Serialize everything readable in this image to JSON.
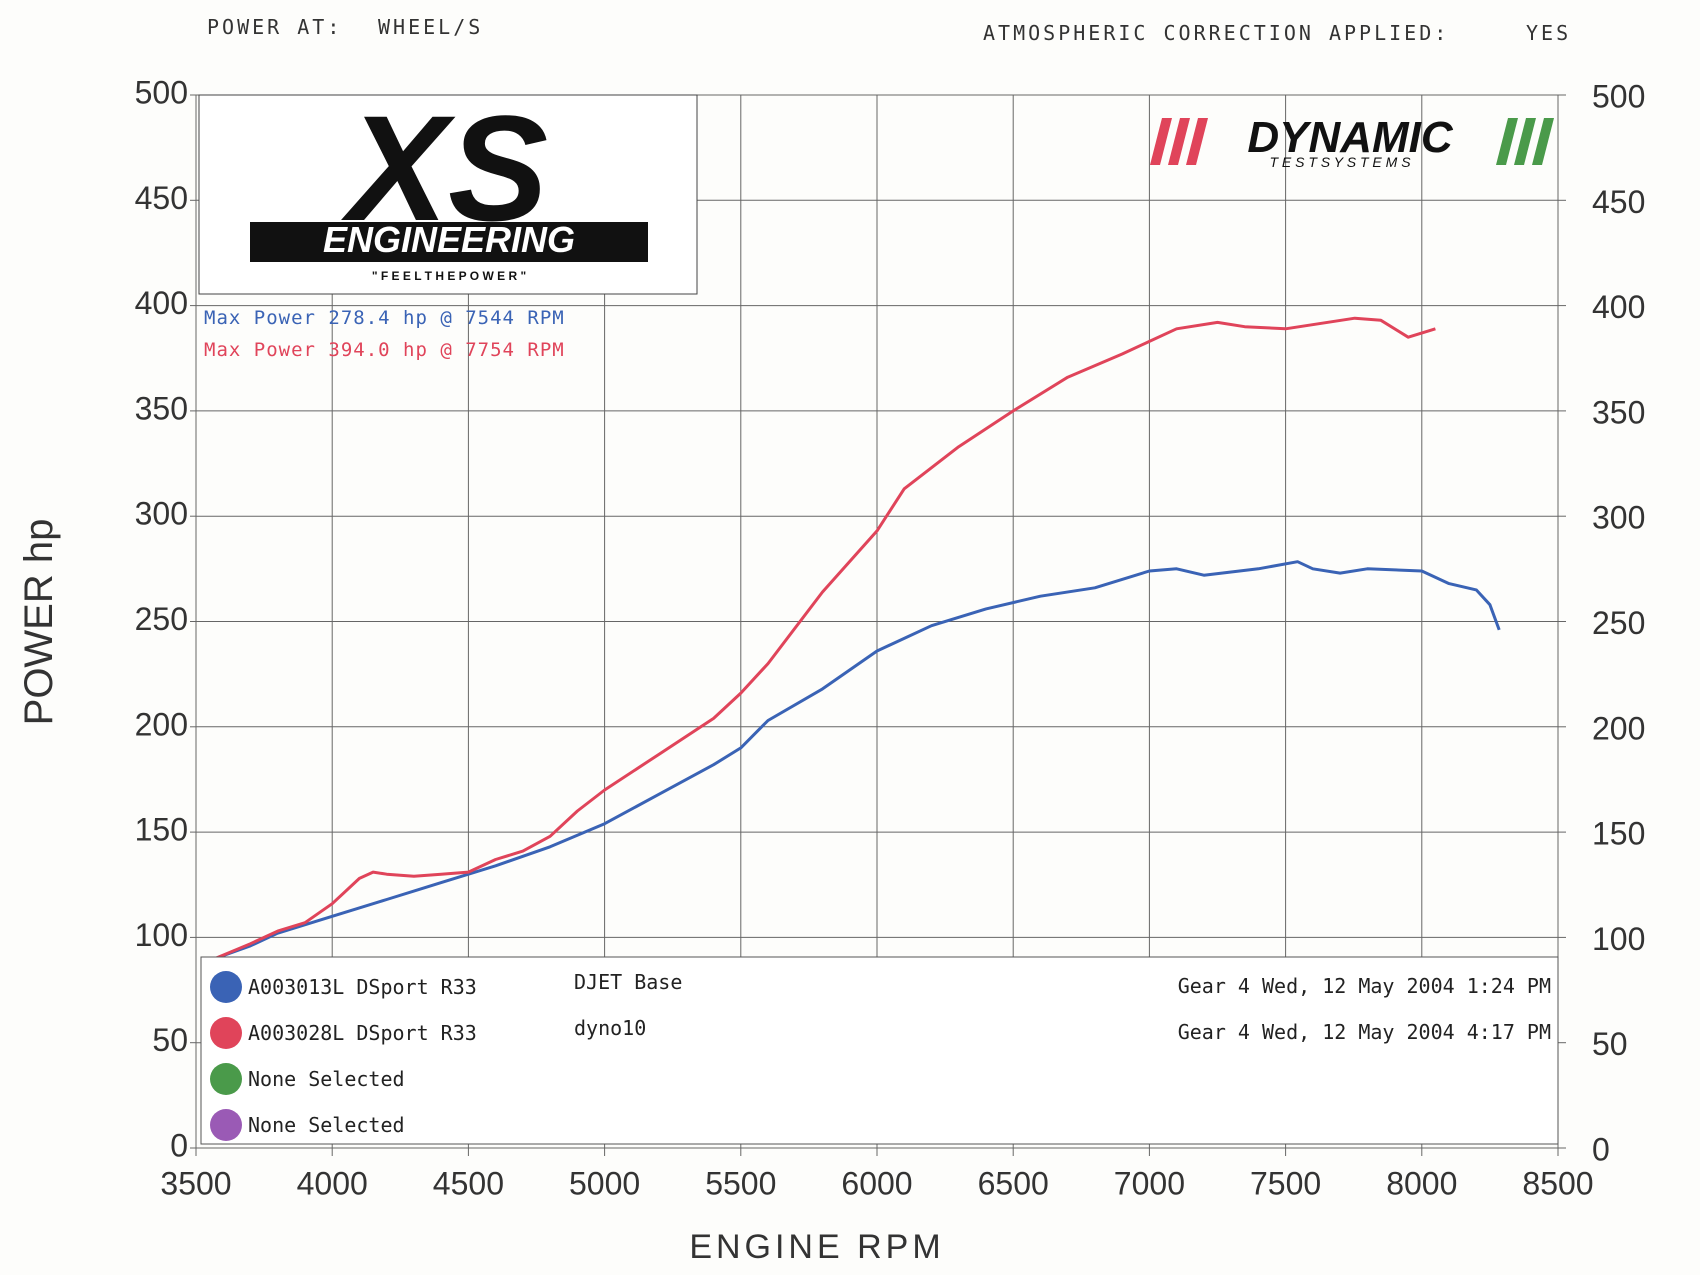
{
  "chart_data": {
    "type": "line",
    "header_left_label": "POWER AT:",
    "header_left_value": "WHEEL/S",
    "header_right_label": "ATMOSPHERIC CORRECTION APPLIED:",
    "header_right_value": "YES",
    "logo_left": {
      "main": "XS",
      "sub": "ENGINEERING",
      "tagline": "\" F E E L   T H E   P O W E R \""
    },
    "logo_right": {
      "main": "DYNAMIC",
      "sub": "T E S T   S Y S T E M S"
    },
    "annotations": [
      {
        "text": "Max Power 278.4 hp @ 7544 RPM",
        "color": "#3a63b5"
      },
      {
        "text": "Max Power 394.0 hp @ 7754 RPM",
        "color": "#e0445a"
      }
    ],
    "xlabel": "ENGINE RPM",
    "ylabel": "POWER hp",
    "xlim": [
      3500,
      8500
    ],
    "xticks": [
      3500,
      4000,
      4500,
      5000,
      5500,
      6000,
      6500,
      7000,
      7500,
      8000,
      8500
    ],
    "ylim": [
      0,
      500
    ],
    "yticks": [
      0,
      50,
      100,
      150,
      200,
      250,
      300,
      350,
      400,
      450,
      500
    ],
    "y2lim": [
      0,
      500
    ],
    "y2ticks": [
      0,
      50,
      100,
      150,
      200,
      250,
      300,
      350,
      400,
      450,
      500
    ],
    "grid": true,
    "series": [
      {
        "name": "A003013L DSport R33",
        "note": "DJET Base",
        "timestamp": "Gear 4 Wed, 12 May 2004 1:24 PM",
        "color": "#3a63b5",
        "x": [
          3570,
          3700,
          3800,
          4000,
          4200,
          4400,
          4600,
          4800,
          5000,
          5200,
          5400,
          5500,
          5600,
          5800,
          6000,
          6200,
          6400,
          6600,
          6800,
          7000,
          7100,
          7200,
          7400,
          7544,
          7600,
          7700,
          7800,
          8000,
          8100,
          8200,
          8250,
          8284
        ],
        "values": [
          90,
          96,
          102,
          110,
          118,
          126,
          134,
          143,
          154,
          168,
          182,
          190,
          203,
          218,
          236,
          248,
          256,
          262,
          266,
          274,
          275,
          272,
          275,
          278.4,
          275,
          273,
          275,
          274,
          268,
          265,
          258,
          246
        ]
      },
      {
        "name": "A003028L DSport R33",
        "note": "dyno10",
        "timestamp": "Gear 4 Wed, 12 May 2004 4:17 PM",
        "color": "#e0445a",
        "x": [
          3570,
          3700,
          3800,
          3900,
          4000,
          4100,
          4150,
          4200,
          4300,
          4400,
          4500,
          4600,
          4700,
          4800,
          4900,
          5000,
          5200,
          5400,
          5500,
          5600,
          5800,
          6000,
          6100,
          6300,
          6500,
          6700,
          6900,
          7000,
          7100,
          7250,
          7350,
          7500,
          7754,
          7850,
          7950,
          8050
        ],
        "values": [
          90,
          97,
          103,
          107,
          116,
          128,
          131,
          130,
          129,
          130,
          131,
          137,
          141,
          148,
          160,
          170,
          187,
          204,
          216,
          230,
          264,
          293,
          313,
          333,
          350,
          366,
          377,
          383,
          389,
          392,
          390,
          389,
          394,
          393,
          385,
          389
        ]
      }
    ],
    "legend_extra": [
      {
        "name": "None Selected",
        "color": "#4a9a4a"
      },
      {
        "name": "None Selected",
        "color": "#9a5ab5"
      }
    ]
  }
}
